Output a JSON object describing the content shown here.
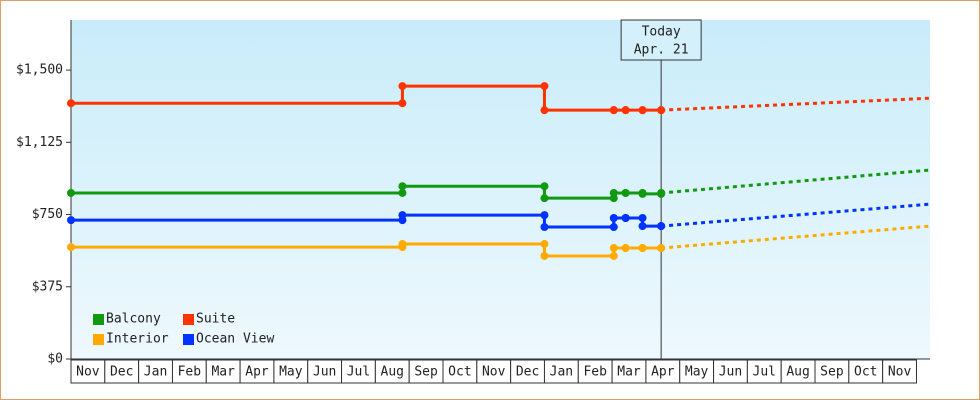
{
  "chart_data": {
    "type": "step-line",
    "categories": [
      "Nov",
      "Dec",
      "Jan",
      "Feb",
      "Mar",
      "Apr",
      "May",
      "Jun",
      "Jul",
      "Aug",
      "Sep",
      "Oct",
      "Nov",
      "Dec",
      "Jan",
      "Feb",
      "Mar",
      "Apr",
      "May",
      "Jun",
      "Jul",
      "Aug",
      "Sep",
      "Oct",
      "Nov"
    ],
    "x": [
      0,
      9.8,
      14.0,
      16.05,
      16.4,
      16.9,
      17.45,
      25.4
    ],
    "xlim": [
      0,
      25.4
    ],
    "ylim": [
      0,
      1760
    ],
    "yticks": [
      {
        "value": 0,
        "label": "$0"
      },
      {
        "value": 375,
        "label": "$375"
      },
      {
        "value": 750,
        "label": "$750"
      },
      {
        "value": 1125,
        "label": "$1,125"
      },
      {
        "value": 1500,
        "label": "$1,500"
      }
    ],
    "today": {
      "label": "Today",
      "date": "Apr. 21",
      "x": 17.45
    },
    "legend": "lower-left",
    "series": [
      {
        "name": "Balcony",
        "color": "#119911",
        "values": [
          862,
          897,
          835,
          862,
          862,
          857,
          862,
          981
        ]
      },
      {
        "name": "Suite",
        "color": "#ff3300",
        "values": [
          1328,
          1417,
          1292,
          1292,
          1292,
          1292,
          1292,
          1354
        ]
      },
      {
        "name": "Interior",
        "color": "#ffaa00",
        "values": [
          581,
          597,
          535,
          576,
          576,
          576,
          576,
          690
        ]
      },
      {
        "name": "Ocean View",
        "color": "#0033ff",
        "values": [
          721,
          747,
          685,
          732,
          732,
          690,
          690,
          804
        ]
      }
    ]
  }
}
